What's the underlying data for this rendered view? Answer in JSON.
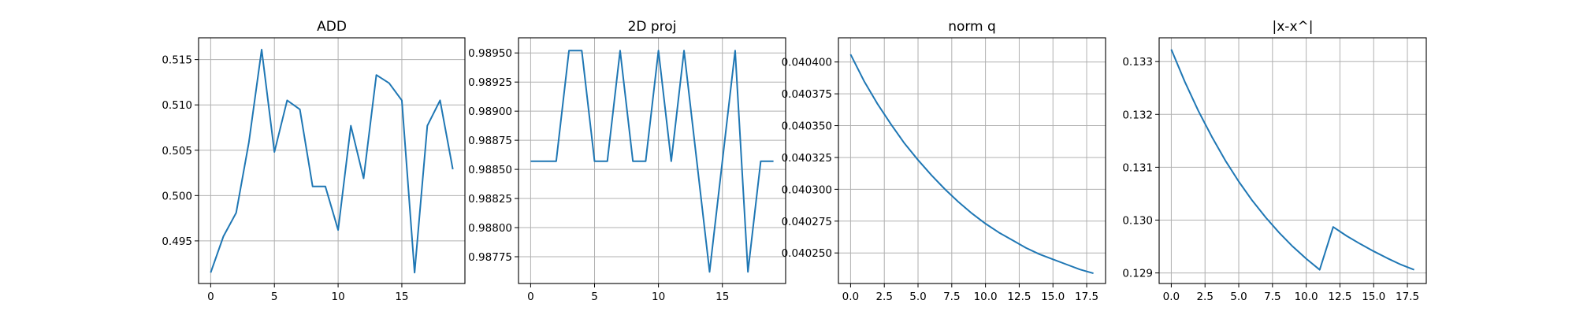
{
  "colors": {
    "line": "#1f77b4",
    "grid": "#b0b0b0",
    "axes": "#000000",
    "background": "#ffffff"
  },
  "chart_data": [
    {
      "type": "line",
      "title": "ADD",
      "xlabel": "",
      "ylabel": "",
      "xlim": [
        -0.95,
        19.95
      ],
      "ylim": [
        0.4903,
        0.5174
      ],
      "grid": true,
      "xticks": [
        0,
        5,
        10,
        15
      ],
      "xtick_labels": [
        "0",
        "5",
        "10",
        "15"
      ],
      "yticks": [
        0.495,
        0.5,
        0.505,
        0.51,
        0.515
      ],
      "ytick_labels": [
        "0.495",
        "0.500",
        "0.505",
        "0.510",
        "0.515"
      ],
      "series": [
        {
          "x": [
            0,
            1,
            2,
            3,
            4,
            5,
            6,
            7,
            8,
            9,
            10,
            11,
            12,
            13,
            14,
            15,
            16,
            17,
            18,
            19
          ],
          "y": [
            0.4915,
            0.4955,
            0.4981,
            0.5059,
            0.5161,
            0.5048,
            0.5105,
            0.5095,
            0.501,
            0.501,
            0.4962,
            0.5077,
            0.5019,
            0.5133,
            0.5124,
            0.5105,
            0.4915,
            0.5077,
            0.5105,
            0.5029
          ]
        }
      ]
    },
    {
      "type": "line",
      "title": "2D proj",
      "xlabel": "",
      "ylabel": "",
      "xlim": [
        -0.95,
        19.95
      ],
      "ylim": [
        0.98752,
        0.98963
      ],
      "grid": true,
      "xticks": [
        0,
        5,
        10,
        15
      ],
      "xtick_labels": [
        "0",
        "5",
        "10",
        "15"
      ],
      "yticks": [
        0.98775,
        0.988,
        0.98825,
        0.9885,
        0.98875,
        0.989,
        0.98925,
        0.9895
      ],
      "ytick_labels": [
        "0.98775",
        "0.98800",
        "0.98825",
        "0.98850",
        "0.98875",
        "0.98900",
        "0.98925",
        "0.98950"
      ],
      "series": [
        {
          "x": [
            0,
            1,
            2,
            3,
            4,
            5,
            6,
            7,
            8,
            9,
            10,
            11,
            12,
            13,
            14,
            15,
            16,
            17,
            18,
            19
          ],
          "y": [
            0.98857,
            0.98857,
            0.98857,
            0.98952,
            0.98952,
            0.98857,
            0.98857,
            0.98952,
            0.98857,
            0.98857,
            0.98952,
            0.98857,
            0.98952,
            0.98857,
            0.98762,
            0.98857,
            0.98952,
            0.98762,
            0.98857,
            0.98857
          ]
        }
      ]
    },
    {
      "type": "line",
      "title": "norm q",
      "xlabel": "",
      "ylabel": "",
      "xlim": [
        -0.9,
        18.9
      ],
      "ylim": [
        0.040226,
        0.040419
      ],
      "grid": true,
      "xticks": [
        0,
        2.5,
        5,
        7.5,
        10,
        12.5,
        15,
        17.5
      ],
      "xtick_labels": [
        "0.0",
        "2.5",
        "5.0",
        "7.5",
        "10.0",
        "12.5",
        "15.0",
        "17.5"
      ],
      "yticks": [
        0.04025,
        0.040275,
        0.0403,
        0.040325,
        0.04035,
        0.040375,
        0.0404
      ],
      "ytick_labels": [
        "0.040250",
        "0.040275",
        "0.040300",
        "0.040325",
        "0.040350",
        "0.040375",
        "0.040400"
      ],
      "series": [
        {
          "x": [
            0,
            1,
            2,
            3,
            4,
            5,
            6,
            7,
            8,
            9,
            10,
            11,
            12,
            13,
            14,
            15,
            16,
            17,
            18
          ],
          "y": [
            0.040406,
            0.040385,
            0.040367,
            0.040351,
            0.040336,
            0.040323,
            0.040311,
            0.0403,
            0.04029,
            0.040281,
            0.040273,
            0.040266,
            0.04026,
            0.040254,
            0.040249,
            0.040245,
            0.040241,
            0.040237,
            0.040234
          ]
        }
      ]
    },
    {
      "type": "line",
      "title": "|x-x^|",
      "xlabel": "",
      "ylabel": "",
      "xlim": [
        -0.9,
        18.9
      ],
      "ylim": [
        0.1288,
        0.13345
      ],
      "grid": true,
      "xticks": [
        0,
        2.5,
        5,
        7.5,
        10,
        12.5,
        15,
        17.5
      ],
      "xtick_labels": [
        "0.0",
        "2.5",
        "5.0",
        "7.5",
        "10.0",
        "12.5",
        "15.0",
        "17.5"
      ],
      "yticks": [
        0.129,
        0.13,
        0.131,
        0.132,
        0.133
      ],
      "ytick_labels": [
        "0.129",
        "0.130",
        "0.131",
        "0.132",
        "0.133"
      ],
      "series": [
        {
          "x": [
            0,
            1,
            2,
            3,
            4,
            5,
            6,
            7,
            8,
            9,
            10,
            11,
            12,
            13,
            14,
            15,
            16,
            17,
            18
          ],
          "y": [
            0.13323,
            0.13262,
            0.13207,
            0.13158,
            0.13113,
            0.13073,
            0.13037,
            0.13005,
            0.12976,
            0.1295,
            0.12927,
            0.12906,
            0.12987,
            0.1297,
            0.12955,
            0.12941,
            0.12928,
            0.12916,
            0.12906
          ]
        }
      ]
    }
  ]
}
